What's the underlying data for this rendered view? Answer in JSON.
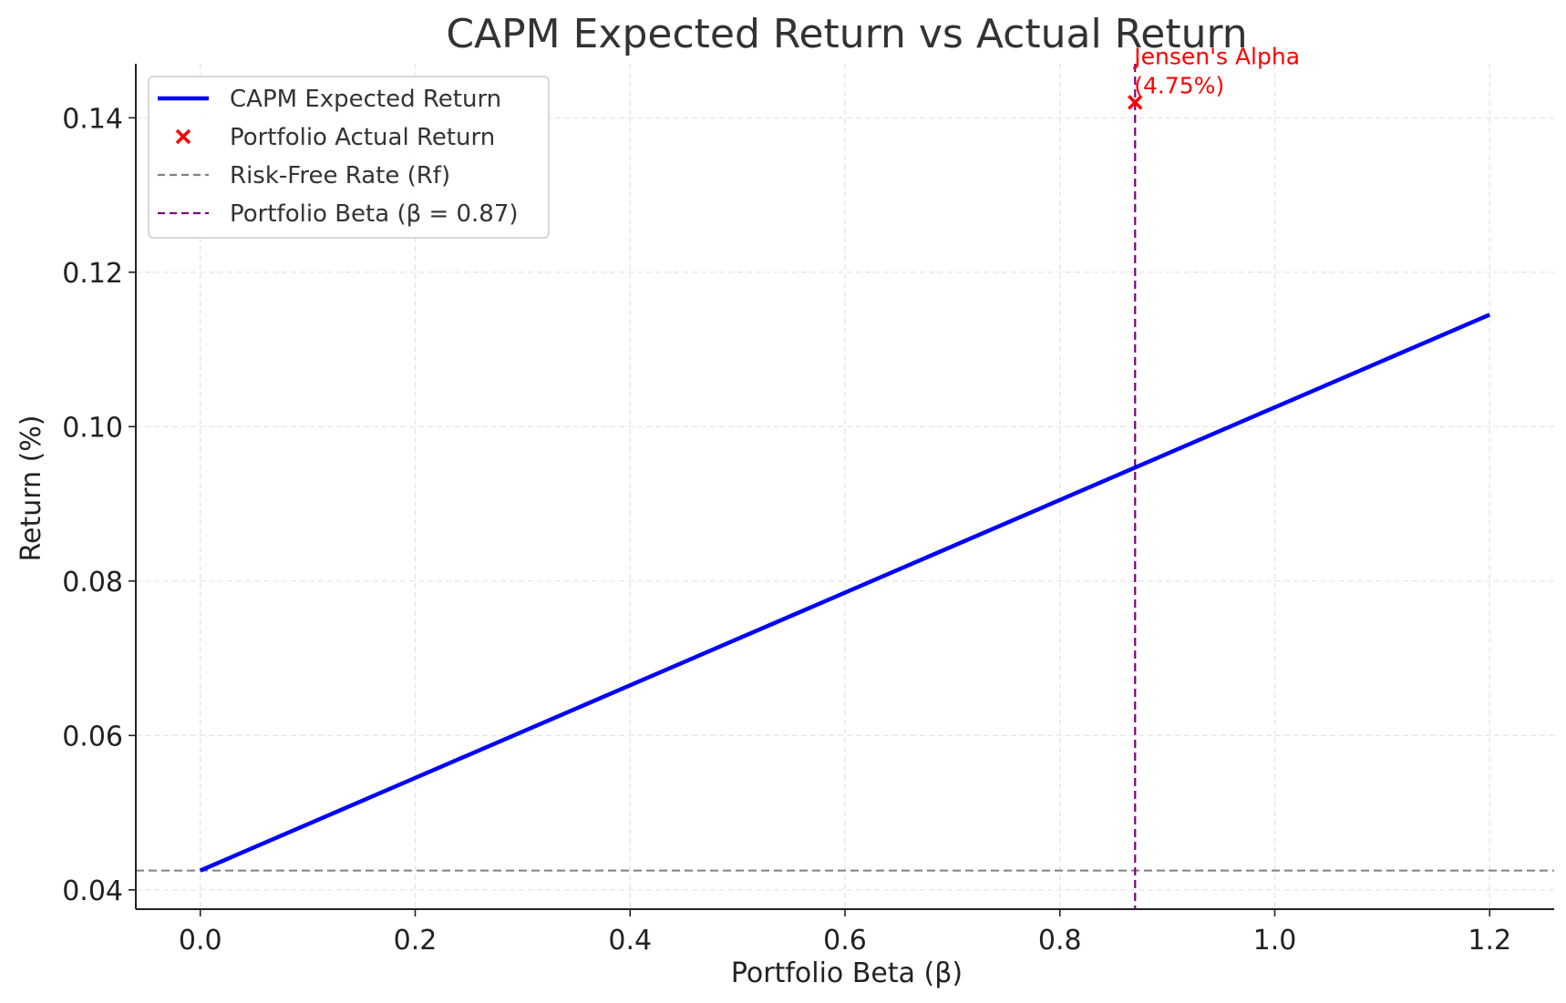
{
  "chart_data": {
    "type": "line",
    "title": "CAPM Expected Return vs Actual Return",
    "xlabel": "Portfolio Beta (β)",
    "ylabel": "Return (%)",
    "xlim": [
      -0.06,
      1.26
    ],
    "ylim": [
      0.0375,
      0.147
    ],
    "xticks": [
      0.0,
      0.2,
      0.4,
      0.6,
      0.8,
      1.0,
      1.2
    ],
    "xtick_labels": [
      "0.0",
      "0.2",
      "0.4",
      "0.6",
      "0.8",
      "1.0",
      "1.2"
    ],
    "yticks": [
      0.04,
      0.06,
      0.08,
      0.1,
      0.12,
      0.14
    ],
    "ytick_labels": [
      "0.04",
      "0.06",
      "0.08",
      "0.10",
      "0.12",
      "0.14"
    ],
    "grid": true,
    "legend_position": "top-left",
    "series": [
      {
        "name": "CAPM Expected Return",
        "kind": "line",
        "color": "#0000ff",
        "x": [
          0.0,
          1.2
        ],
        "y": [
          0.0425,
          0.1145
        ]
      },
      {
        "name": "Portfolio Actual Return",
        "kind": "scatter",
        "marker": "x",
        "color": "#ff0000",
        "x": [
          0.87
        ],
        "y": [
          0.142
        ]
      },
      {
        "name": "Risk-Free Rate (Rf)",
        "kind": "hline",
        "color": "#808080",
        "y": 0.0425
      },
      {
        "name": "Portfolio Beta (β = 0.87)",
        "kind": "vline",
        "color": "#800080",
        "x": 0.87
      }
    ],
    "annotations": [
      {
        "lines": [
          "Jensen's Alpha",
          "(4.75%)"
        ],
        "x": 0.87,
        "y": 0.142,
        "color": "#ff0000"
      }
    ]
  }
}
